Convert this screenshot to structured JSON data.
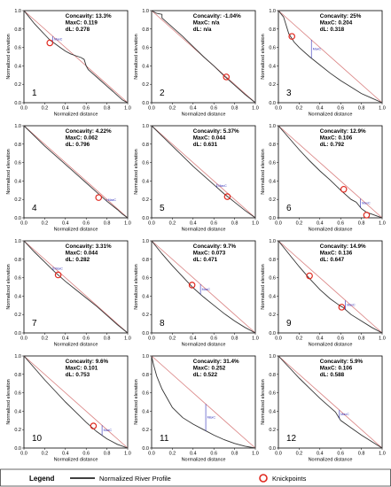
{
  "panels": [
    {
      "number": "1",
      "concavity": "Concavity: 13.3%",
      "maxc": "MaxC: 0.119",
      "dl": "dL: 0.278",
      "profile_x": [
        0,
        0.05,
        0.1,
        0.15,
        0.2,
        0.25,
        0.3,
        0.35,
        0.4,
        0.45,
        0.5,
        0.55,
        0.58,
        0.6,
        0.62,
        0.65,
        0.7,
        0.75,
        0.8,
        0.85,
        0.9,
        0.95,
        1
      ],
      "profile_y": [
        1,
        0.93,
        0.86,
        0.8,
        0.74,
        0.68,
        0.64,
        0.6,
        0.56,
        0.53,
        0.51,
        0.49,
        0.47,
        0.4,
        0.36,
        0.33,
        0.28,
        0.23,
        0.18,
        0.13,
        0.08,
        0.03,
        0
      ],
      "knickpoints": [
        [
          0.25,
          0.65
        ]
      ],
      "maxc_at": 0.278
    },
    {
      "number": "2",
      "concavity": "Concavity: -1.04%",
      "maxc": "MaxC: n/a",
      "dl": "dL: n/a",
      "profile_x": [
        0,
        0.05,
        0.1,
        0.1,
        0.2,
        0.3,
        0.4,
        0.5,
        0.6,
        0.7,
        0.8,
        0.9,
        1
      ],
      "profile_y": [
        1,
        0.97,
        0.96,
        0.92,
        0.82,
        0.72,
        0.61,
        0.5,
        0.4,
        0.29,
        0.19,
        0.09,
        0
      ],
      "knickpoints": [
        [
          0.72,
          0.28
        ]
      ],
      "maxc_at": null
    },
    {
      "number": "3",
      "concavity": "Concavity: 25%",
      "maxc": "MaxC: 0.204",
      "dl": "dL: 0.318",
      "profile_x": [
        0,
        0.05,
        0.1,
        0.15,
        0.2,
        0.3,
        0.4,
        0.5,
        0.6,
        0.7,
        0.8,
        0.9,
        1
      ],
      "profile_y": [
        1,
        0.93,
        0.75,
        0.66,
        0.6,
        0.5,
        0.41,
        0.32,
        0.24,
        0.17,
        0.1,
        0.05,
        0
      ],
      "knickpoints": [
        [
          0.13,
          0.72
        ]
      ],
      "maxc_at": 0.318
    },
    {
      "number": "4",
      "concavity": "Concavity: 4.22%",
      "maxc": "MaxC: 0.062",
      "dl": "dL: 0.796",
      "profile_x": [
        0,
        0.1,
        0.2,
        0.3,
        0.4,
        0.5,
        0.6,
        0.7,
        0.8,
        0.9,
        0.95,
        1
      ],
      "profile_y": [
        1,
        0.89,
        0.78,
        0.68,
        0.58,
        0.48,
        0.38,
        0.28,
        0.18,
        0.09,
        0.04,
        0
      ],
      "knickpoints": [
        [
          0.72,
          0.22
        ]
      ],
      "maxc_at": 0.796
    },
    {
      "number": "5",
      "concavity": "Concavity: 5.37%",
      "maxc": "MaxC: 0.044",
      "dl": "dL: 0.631",
      "profile_x": [
        0,
        0.1,
        0.2,
        0.3,
        0.4,
        0.5,
        0.6,
        0.7,
        0.8,
        0.9,
        1
      ],
      "profile_y": [
        1,
        0.89,
        0.78,
        0.67,
        0.56,
        0.46,
        0.36,
        0.26,
        0.17,
        0.08,
        0
      ],
      "knickpoints": [
        [
          0.73,
          0.23
        ]
      ],
      "maxc_at": 0.631
    },
    {
      "number": "6",
      "concavity": "Concavity: 12.9%",
      "maxc": "MaxC: 0.106",
      "dl": "dL: 0.792",
      "profile_x": [
        0,
        0.1,
        0.2,
        0.3,
        0.4,
        0.5,
        0.6,
        0.7,
        0.75,
        0.8,
        0.85,
        0.9,
        0.95,
        1
      ],
      "profile_y": [
        1,
        0.87,
        0.74,
        0.62,
        0.51,
        0.41,
        0.3,
        0.2,
        0.17,
        0.1,
        0.06,
        0.04,
        0.02,
        0
      ],
      "knickpoints": [
        [
          0.63,
          0.31
        ],
        [
          0.85,
          0.03
        ]
      ],
      "maxc_at": 0.792
    },
    {
      "number": "7",
      "concavity": "Concavity: 3.31%",
      "maxc": "MaxC: 0.044",
      "dl": "dL: 0.282",
      "profile_x": [
        0,
        0.1,
        0.2,
        0.3,
        0.4,
        0.5,
        0.6,
        0.7,
        0.8,
        0.9,
        1
      ],
      "profile_y": [
        1,
        0.88,
        0.77,
        0.66,
        0.56,
        0.47,
        0.38,
        0.29,
        0.19,
        0.09,
        0
      ],
      "knickpoints": [
        [
          0.33,
          0.63
        ]
      ],
      "maxc_at": 0.282
    },
    {
      "number": "8",
      "concavity": "Concavity: 9.7%",
      "maxc": "MaxC: 0.073",
      "dl": "dL: 0.471",
      "profile_x": [
        0,
        0.1,
        0.2,
        0.3,
        0.4,
        0.5,
        0.6,
        0.7,
        0.8,
        0.9,
        1
      ],
      "profile_y": [
        1,
        0.86,
        0.73,
        0.61,
        0.49,
        0.39,
        0.3,
        0.21,
        0.13,
        0.06,
        0
      ],
      "knickpoints": [
        [
          0.39,
          0.52
        ]
      ],
      "maxc_at": 0.471
    },
    {
      "number": "9",
      "concavity": "Concavity: 14.9%",
      "maxc": "MaxC: 0.136",
      "dl": "dL: 0.647",
      "profile_x": [
        0,
        0.1,
        0.2,
        0.3,
        0.4,
        0.5,
        0.6,
        0.62,
        0.7,
        0.8,
        0.9,
        1
      ],
      "profile_y": [
        1,
        0.86,
        0.72,
        0.59,
        0.47,
        0.37,
        0.29,
        0.28,
        0.2,
        0.13,
        0.06,
        0
      ],
      "knickpoints": [
        [
          0.3,
          0.62
        ],
        [
          0.61,
          0.28
        ]
      ],
      "maxc_at": 0.647
    },
    {
      "number": "10",
      "concavity": "Concavity: 9.6%",
      "maxc": "MaxC: 0.101",
      "dl": "dL: 0.753",
      "profile_x": [
        0,
        0.1,
        0.2,
        0.3,
        0.4,
        0.5,
        0.6,
        0.7,
        0.8,
        0.9,
        1
      ],
      "profile_y": [
        1,
        0.87,
        0.74,
        0.62,
        0.5,
        0.39,
        0.28,
        0.18,
        0.1,
        0.04,
        0
      ],
      "knickpoints": [
        [
          0.67,
          0.24
        ]
      ],
      "maxc_at": 0.753
    },
    {
      "number": "11",
      "concavity": "Concavity: 31.4%",
      "maxc": "MaxC: 0.252",
      "dl": "dL: 0.522",
      "profile_x": [
        0,
        0.02,
        0.05,
        0.1,
        0.2,
        0.3,
        0.4,
        0.5,
        0.6,
        0.7,
        0.8,
        0.9,
        1
      ],
      "profile_y": [
        1,
        0.9,
        0.78,
        0.64,
        0.44,
        0.33,
        0.26,
        0.2,
        0.14,
        0.09,
        0.05,
        0.02,
        0
      ],
      "knickpoints": [],
      "maxc_at": 0.522
    },
    {
      "number": "12",
      "concavity": "Concavity: 5.9%",
      "maxc": "MaxC: 0.106",
      "dl": "dL: 0.588",
      "profile_x": [
        0,
        0.1,
        0.2,
        0.3,
        0.4,
        0.5,
        0.55,
        0.6,
        0.7,
        0.8,
        0.9,
        1
      ],
      "profile_y": [
        1,
        0.88,
        0.76,
        0.65,
        0.54,
        0.44,
        0.39,
        0.3,
        0.22,
        0.14,
        0.07,
        0
      ],
      "knickpoints": [],
      "maxc_at": 0.588
    }
  ],
  "chart_data": {
    "type": "line",
    "panel_count": 12,
    "xlabel": "Normalized distance",
    "ylabel": "Normalized elevation",
    "xlim": [
      0,
      1
    ],
    "ylim": [
      0,
      1
    ],
    "xticks": [
      "0.0",
      "0.2",
      "0.4",
      "0.6",
      "0.8",
      "1.0"
    ],
    "yticks": [
      "0.0",
      "0.2",
      "0.4",
      "0.6",
      "0.8",
      "1.0"
    ],
    "series": [
      {
        "name": "Normalized River Profile",
        "color": "#333333"
      },
      {
        "name": "Knickpoints",
        "marker": "open-circle",
        "color": "#e0281e"
      }
    ],
    "reference_line_color": "#d98080",
    "maxc_annotation": "MaxC",
    "maxc_color": "#2b2bb8"
  },
  "legend": {
    "title": "Legend",
    "profile_label": "Normalized River Profile",
    "knickpoint_label": "Knickpoints"
  }
}
